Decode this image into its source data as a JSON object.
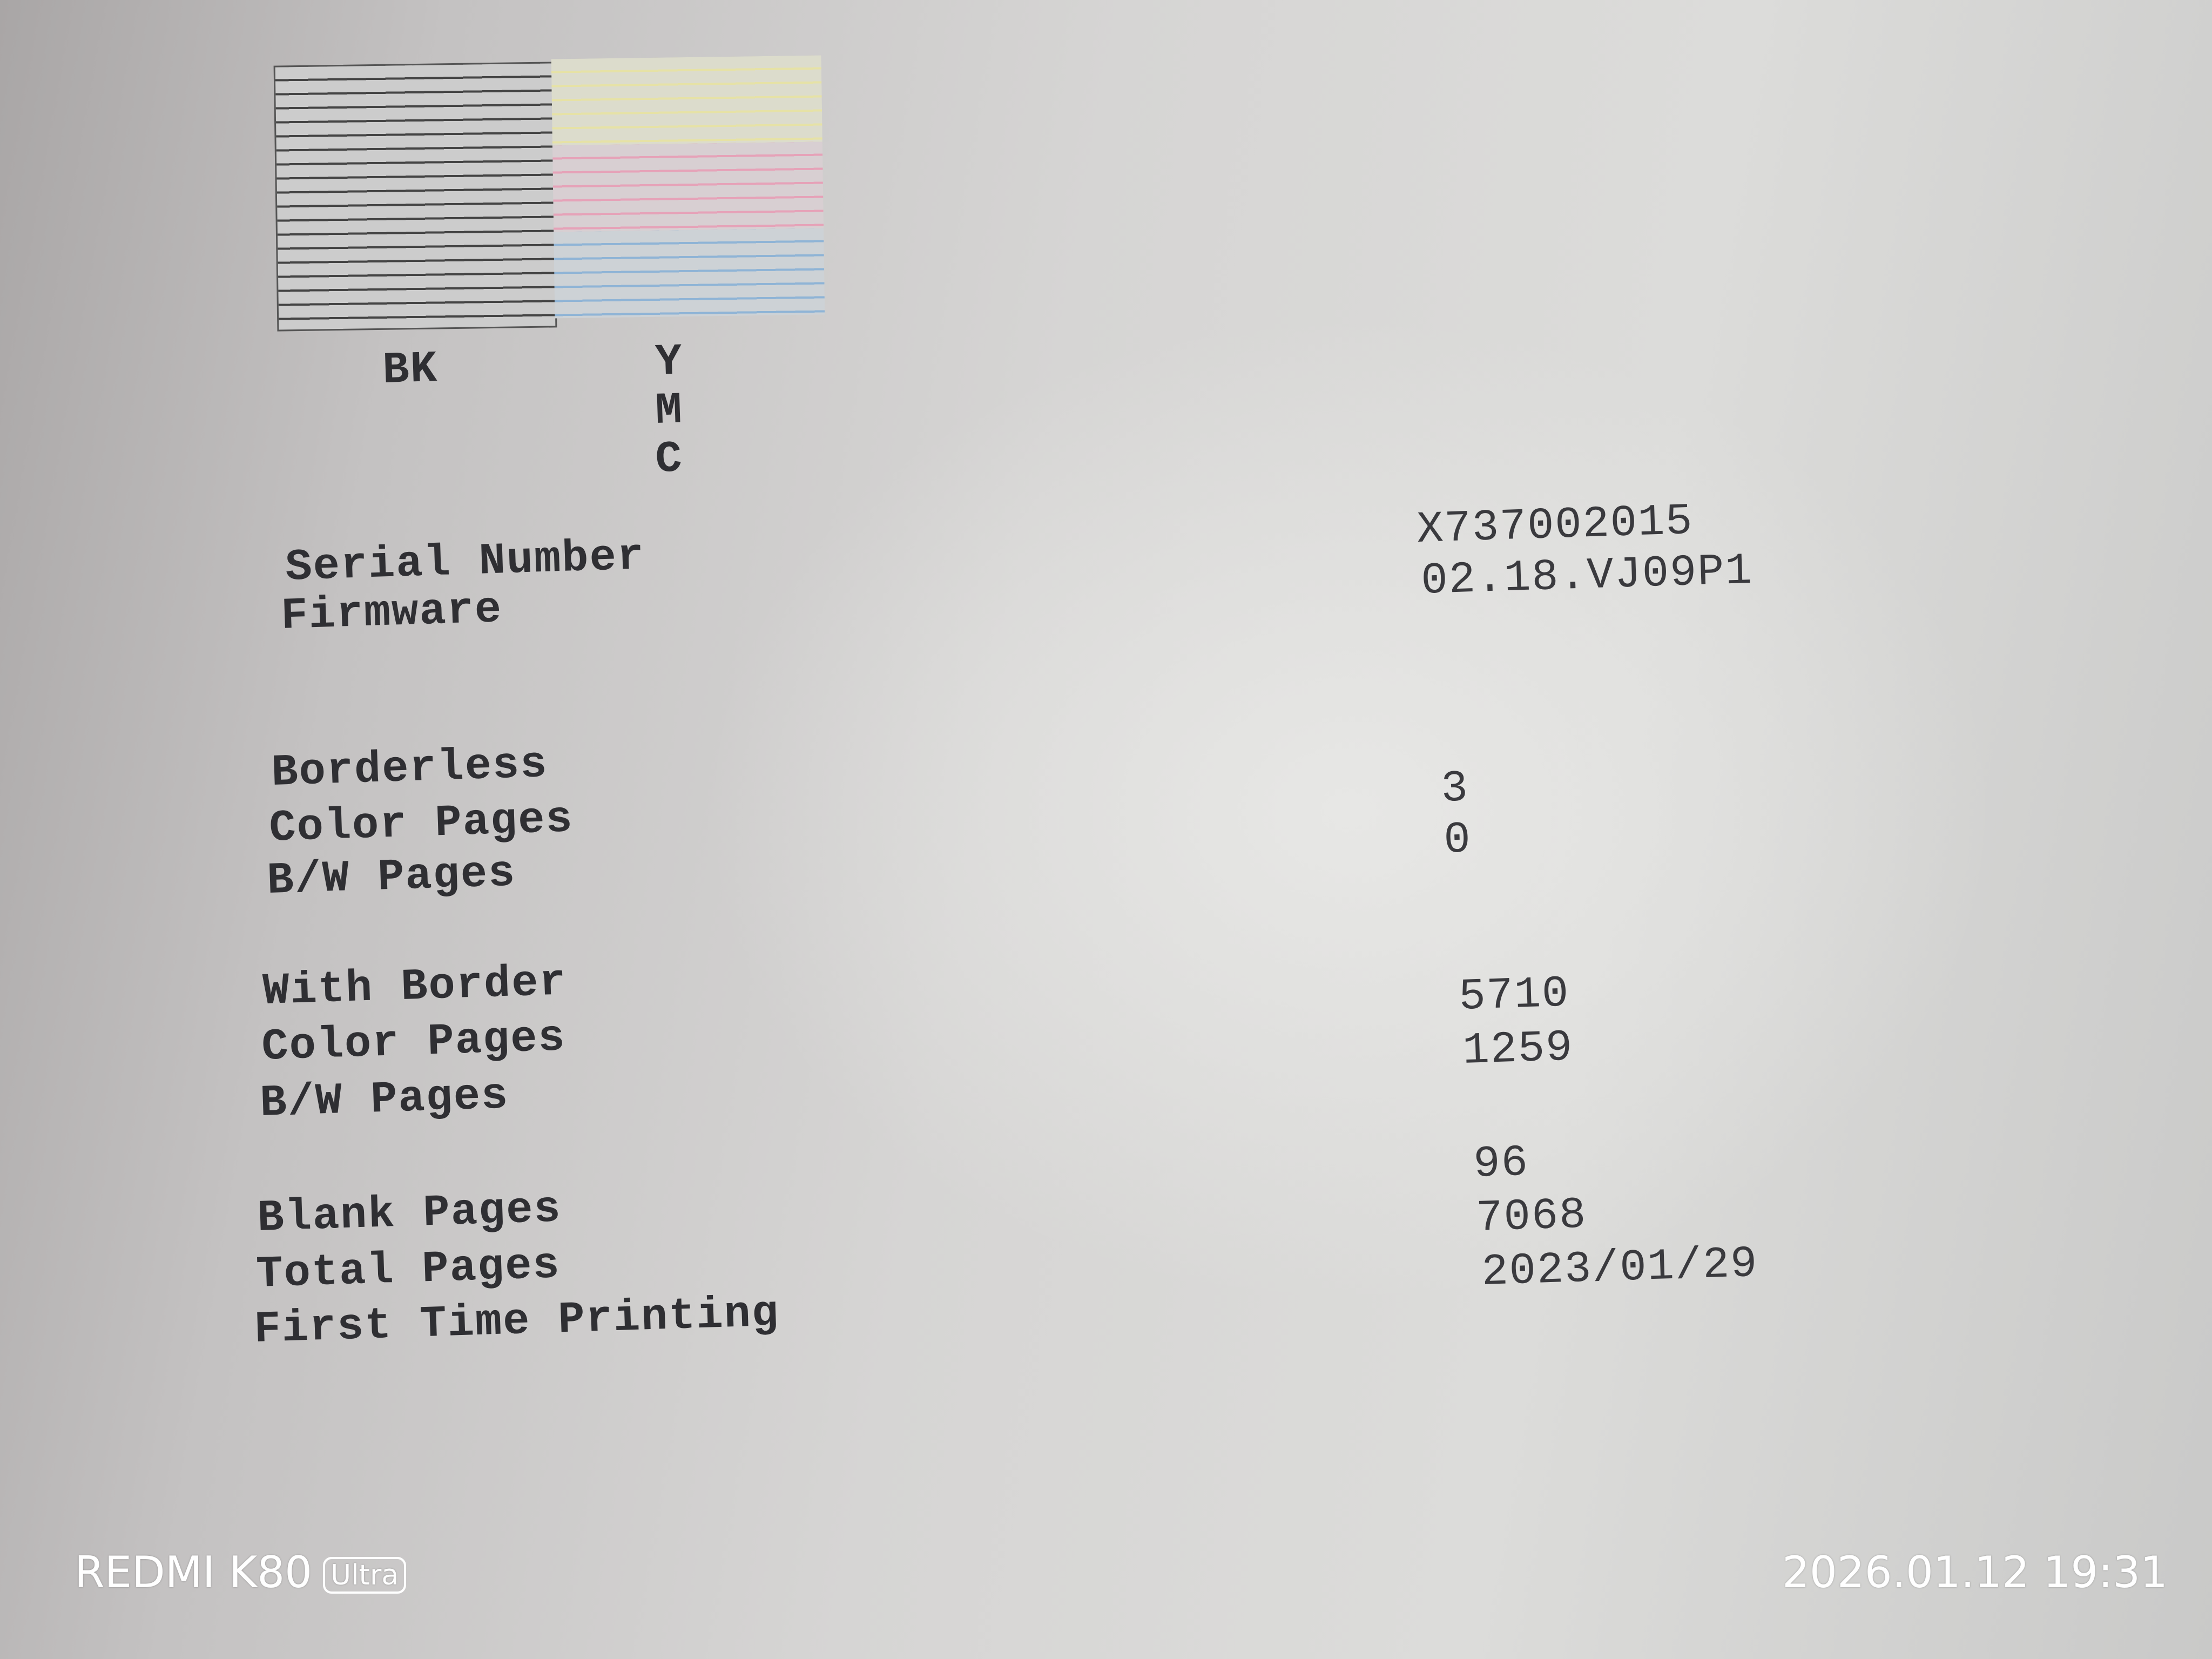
{
  "nozzle_check": {
    "black_label": "BK",
    "color_labels": [
      "Y",
      "M",
      "C"
    ],
    "colors": {
      "black": "#444444",
      "yellow": "#e6e2a6",
      "magenta": "#e6a2b8",
      "cyan": "#8fb4d6"
    }
  },
  "info": [
    {
      "label": "Serial Number",
      "value": "X737002015"
    },
    {
      "label": "Firmware",
      "value": "02.18.VJ09P1"
    }
  ],
  "borderless": {
    "heading": "Borderless",
    "rows": [
      {
        "label": "Color Pages",
        "value": "3"
      },
      {
        "label": "B/W Pages",
        "value": "0"
      }
    ]
  },
  "with_border": {
    "heading": "With Border",
    "rows": [
      {
        "label": "Color Pages",
        "value": "5710"
      },
      {
        "label": "B/W Pages",
        "value": "1259"
      }
    ]
  },
  "totals": [
    {
      "label": "Blank Pages",
      "value": "96"
    },
    {
      "label": "Total Pages",
      "value": "7068"
    },
    {
      "label": "First Time Printing",
      "value": "2023/01/29"
    }
  ],
  "watermark": {
    "device": "REDMI K80",
    "badge": "Ultra",
    "datetime": "2026.01.12 19:31"
  }
}
